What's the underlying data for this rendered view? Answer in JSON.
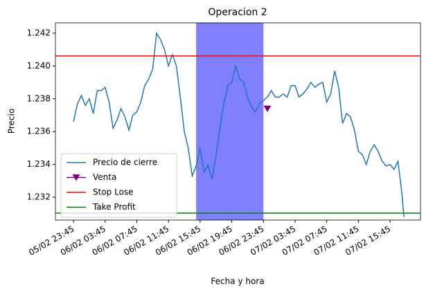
{
  "chart_data": {
    "type": "line",
    "title": "Operacion 2",
    "xlabel": "Fecha y hora",
    "ylabel": "Precio",
    "x": [
      "05/02 23:45",
      "06/02 00:15",
      "06/02 00:45",
      "06/02 01:15",
      "06/02 01:45",
      "06/02 02:15",
      "06/02 02:45",
      "06/02 03:15",
      "06/02 03:45",
      "06/02 04:15",
      "06/02 04:45",
      "06/02 05:15",
      "06/02 05:45",
      "06/02 06:15",
      "06/02 06:45",
      "06/02 07:15",
      "06/02 07:45",
      "06/02 08:15",
      "06/02 08:45",
      "06/02 09:15",
      "06/02 09:45",
      "06/02 10:15",
      "06/02 10:45",
      "06/02 11:15",
      "06/02 11:45",
      "06/02 12:15",
      "06/02 12:45",
      "06/02 13:15",
      "06/02 13:45",
      "06/02 14:15",
      "06/02 14:45",
      "06/02 15:15",
      "06/02 15:45",
      "06/02 16:15",
      "06/02 16:45",
      "06/02 17:15",
      "06/02 17:45",
      "06/02 18:15",
      "06/02 18:45",
      "06/02 19:15",
      "06/02 19:45",
      "06/02 20:15",
      "06/02 20:45",
      "06/02 21:15",
      "06/02 21:45",
      "06/02 22:15",
      "06/02 22:45",
      "06/02 23:15",
      "06/02 23:45",
      "07/02 00:15",
      "07/02 00:45",
      "07/02 01:15",
      "07/02 01:45",
      "07/02 02:15",
      "07/02 02:45",
      "07/02 03:15",
      "07/02 03:45",
      "07/02 04:15",
      "07/02 04:45",
      "07/02 05:15",
      "07/02 05:45",
      "07/02 06:15",
      "07/02 06:45",
      "07/02 07:15",
      "07/02 07:45",
      "07/02 08:15",
      "07/02 08:45",
      "07/02 09:15",
      "07/02 09:45",
      "07/02 10:15",
      "07/02 10:45",
      "07/02 11:15",
      "07/02 11:45",
      "07/02 12:15",
      "07/02 12:45",
      "07/02 13:15",
      "07/02 13:45",
      "07/02 14:15",
      "07/02 14:45",
      "07/02 15:15",
      "07/02 15:45",
      "07/02 16:15",
      "07/02 16:45",
      "07/02 17:15",
      "07/02 17:30"
    ],
    "series": [
      {
        "name": "Precio de cierre",
        "color": "#1f77b4",
        "values": [
          1.2366,
          1.2377,
          1.2382,
          1.2376,
          1.238,
          1.2371,
          1.2385,
          1.2385,
          1.2387,
          1.2378,
          1.2362,
          1.2367,
          1.2374,
          1.2369,
          1.2361,
          1.237,
          1.2372,
          1.2378,
          1.2388,
          1.2392,
          1.2398,
          1.242,
          1.2416,
          1.241,
          1.24,
          1.2407,
          1.24,
          1.2381,
          1.236,
          1.235,
          1.2333,
          1.2339,
          1.235,
          1.2335,
          1.234,
          1.2331,
          1.2345,
          1.2362,
          1.2377,
          1.2388,
          1.239,
          1.24,
          1.2392,
          1.239,
          1.2381,
          1.2375,
          1.2372,
          1.2377,
          1.2379,
          1.2381,
          1.2385,
          1.2381,
          1.2381,
          1.2383,
          1.2381,
          1.2388,
          1.2388,
          1.2381,
          1.2383,
          1.2386,
          1.239,
          1.2387,
          1.2389,
          1.239,
          1.2378,
          1.2383,
          1.2397,
          1.2387,
          1.2365,
          1.2371,
          1.2369,
          1.2361,
          1.2348,
          1.2346,
          1.234,
          1.2348,
          1.2352,
          1.2348,
          1.2342,
          1.2339,
          1.234,
          1.2337,
          1.2342,
          1.2322,
          1.2308
        ]
      }
    ],
    "markers": [
      {
        "name": "Venta",
        "color": "purple",
        "x": "07/02 00:15",
        "value": 1.2374,
        "symbol": "triangle-down"
      }
    ],
    "hlines": [
      {
        "name": "Stop Lose",
        "color": "red",
        "value": 1.24061
      },
      {
        "name": "Take Profit",
        "color": "green",
        "value": 1.23103
      }
    ],
    "spans": [
      {
        "x": [
          "06/02 15:15",
          "06/02 23:45"
        ],
        "color": "blue",
        "alpha": 0.5
      }
    ],
    "xlim": [
      "05/02 21:28",
      "07/02 19:36"
    ],
    "xticks": [
      "05/02 23:45",
      "06/02 03:45",
      "06/02 07:45",
      "06/02 11:45",
      "06/02 15:45",
      "06/02 19:45",
      "06/02 23:45",
      "07/02 03:45",
      "07/02 07:45",
      "07/02 11:45",
      "07/02 15:45"
    ],
    "ylim": [
      1.23061,
      1.24263
    ],
    "yticks": [
      1.232,
      1.234,
      1.236,
      1.238,
      {
        "value": 1.24,
        "label": "1.240"
      },
      1.242
    ],
    "legend": "lower left"
  }
}
